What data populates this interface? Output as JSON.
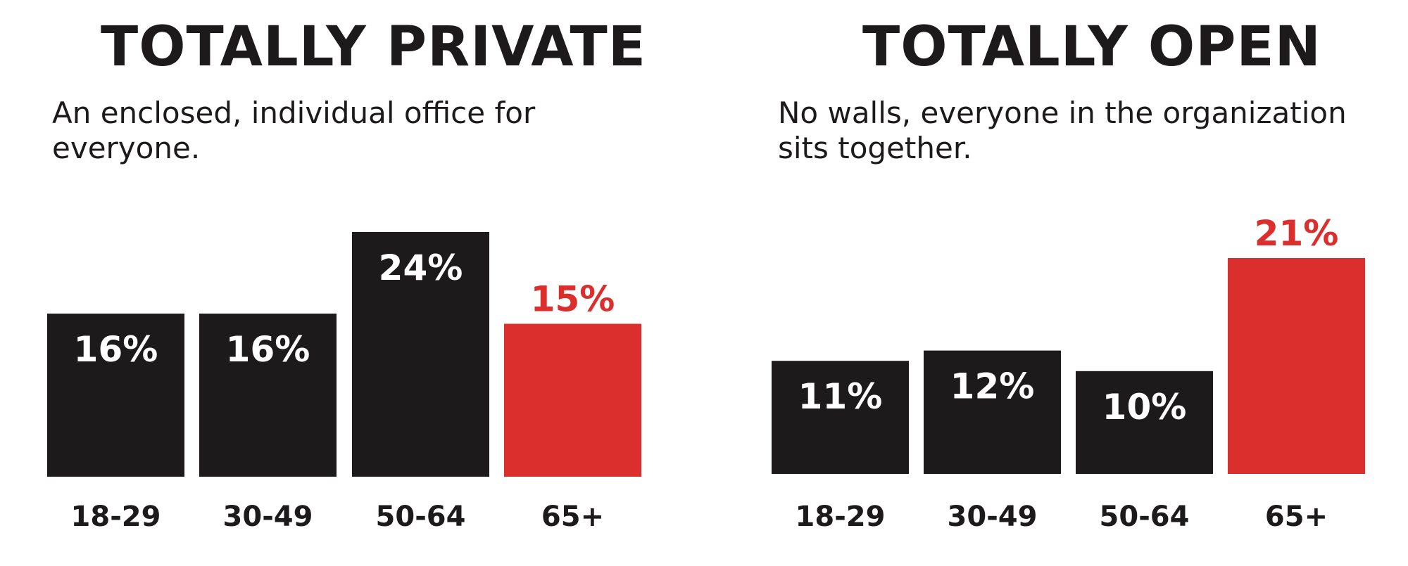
{
  "colors": {
    "bar_default": "#1c1a1b",
    "bar_highlight": "#db2f2d",
    "label_on_bar": "#ffffff",
    "text": "#1c1a1b"
  },
  "chart_data": [
    {
      "type": "bar",
      "title": "TOTALLY PRIVATE",
      "subtitle": "An enclosed, individual office for everyone.",
      "categories": [
        "18-29",
        "30-49",
        "50-64",
        "65+"
      ],
      "values": [
        16,
        16,
        24,
        15
      ],
      "value_labels": [
        "16%",
        "16%",
        "24%",
        "15%"
      ],
      "highlight_index": 3,
      "ylim": [
        0,
        24
      ],
      "xlabel": "",
      "ylabel": "",
      "grid": false,
      "legend": "none"
    },
    {
      "type": "bar",
      "title": "TOTALLY OPEN",
      "subtitle": "No walls, everyone in the organization sits together.",
      "categories": [
        "18-29",
        "30-49",
        "50-64",
        "65+"
      ],
      "values": [
        11,
        12,
        10,
        21
      ],
      "value_labels": [
        "11%",
        "12%",
        "10%",
        "21%"
      ],
      "highlight_index": 3,
      "ylim": [
        0,
        21
      ],
      "xlabel": "",
      "ylabel": "",
      "grid": false,
      "legend": "none"
    }
  ]
}
